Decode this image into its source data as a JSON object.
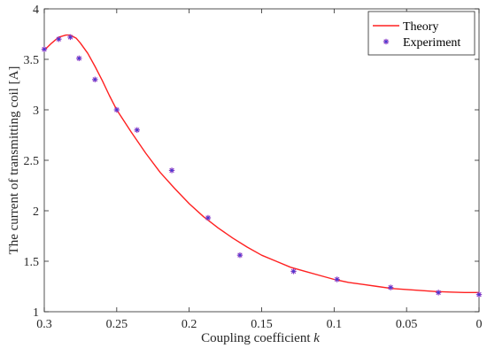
{
  "chart_data": {
    "type": "line",
    "xlabel": "Coupling coefficient",
    "xlabel_var": "k",
    "ylabel": "The current of transmitting coil [A]",
    "x_reversed": true,
    "xlim": [
      0,
      0.3
    ],
    "ylim": [
      1,
      4
    ],
    "x_ticks": [
      0.3,
      0.25,
      0.2,
      0.15,
      0.1,
      0.05,
      0
    ],
    "x_tick_labels": [
      "0.3",
      "0.25",
      "0.2",
      "0.15",
      "0.1",
      "0.05",
      "0"
    ],
    "y_ticks": [
      1,
      1.5,
      2,
      2.5,
      3,
      3.5,
      4
    ],
    "y_tick_labels": [
      "1",
      "1.5",
      "2",
      "2.5",
      "3",
      "3.5",
      "4"
    ],
    "grid": false,
    "legend_position": "top-right",
    "series": [
      {
        "name": "Theory",
        "style": "line",
        "color": "#ff2020",
        "x": [
          0.3,
          0.295,
          0.29,
          0.285,
          0.282,
          0.278,
          0.275,
          0.27,
          0.265,
          0.26,
          0.255,
          0.25,
          0.24,
          0.23,
          0.22,
          0.21,
          0.2,
          0.19,
          0.18,
          0.17,
          0.16,
          0.15,
          0.14,
          0.13,
          0.12,
          0.11,
          0.1,
          0.09,
          0.08,
          0.07,
          0.06,
          0.05,
          0.04,
          0.03,
          0.02,
          0.01,
          0
        ],
        "y": [
          3.59,
          3.66,
          3.72,
          3.74,
          3.74,
          3.71,
          3.66,
          3.56,
          3.43,
          3.29,
          3.14,
          3.0,
          2.78,
          2.57,
          2.38,
          2.22,
          2.07,
          1.94,
          1.83,
          1.73,
          1.64,
          1.56,
          1.5,
          1.44,
          1.4,
          1.36,
          1.32,
          1.29,
          1.27,
          1.25,
          1.23,
          1.22,
          1.21,
          1.2,
          1.195,
          1.19,
          1.19
        ]
      },
      {
        "name": "Experiment",
        "style": "marker",
        "color": "#8a3ec8",
        "x": [
          0.3,
          0.29,
          0.282,
          0.276,
          0.265,
          0.25,
          0.236,
          0.212,
          0.187,
          0.165,
          0.128,
          0.098,
          0.061,
          0.028,
          0
        ],
        "y": [
          3.6,
          3.7,
          3.72,
          3.51,
          3.3,
          3.0,
          2.8,
          2.4,
          1.93,
          1.56,
          1.4,
          1.32,
          1.24,
          1.19,
          1.17
        ]
      }
    ]
  }
}
